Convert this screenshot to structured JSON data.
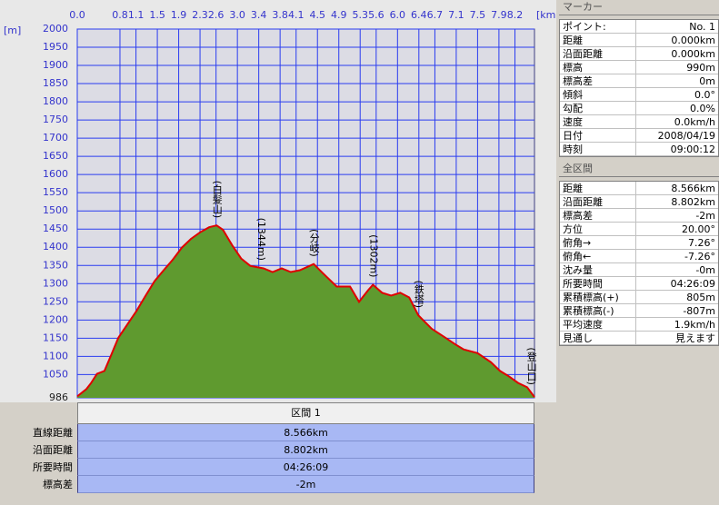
{
  "chart_data": {
    "type": "area",
    "x_label": "[km]",
    "y_label": "[m]",
    "x": [
      0,
      0.17,
      0.26,
      0.37,
      0.51,
      0.63,
      0.77,
      0.94,
      1.11,
      1.28,
      1.45,
      1.62,
      1.79,
      1.96,
      2.13,
      2.3,
      2.47,
      2.61,
      2.73,
      2.9,
      3.07,
      3.24,
      3.49,
      3.66,
      3.83,
      4.0,
      4.17,
      4.43,
      4.6,
      4.86,
      5.11,
      5.28,
      5.45,
      5.54,
      5.71,
      5.88,
      6.05,
      6.22,
      6.39,
      6.64,
      6.9,
      7.07,
      7.24,
      7.5,
      7.75,
      7.92,
      8.09,
      8.26,
      8.43,
      8.566
    ],
    "values": [
      990,
      1010,
      1027,
      1052,
      1060,
      1102,
      1151,
      1188,
      1225,
      1267,
      1307,
      1337,
      1366,
      1399,
      1423,
      1441,
      1455,
      1460,
      1448,
      1406,
      1369,
      1349,
      1342,
      1332,
      1342,
      1332,
      1337,
      1354,
      1329,
      1292,
      1292,
      1250,
      1282,
      1297,
      1275,
      1267,
      1275,
      1262,
      1213,
      1176,
      1151,
      1134,
      1119,
      1109,
      1084,
      1060,
      1045,
      1027,
      1015,
      988
    ],
    "xlim": [
      0,
      8.566
    ],
    "ylim": [
      986,
      2000
    ],
    "xticks": [
      {
        "value": 0,
        "label": "0.0"
      },
      0.8,
      1.1,
      1.5,
      1.9,
      2.3,
      2.6,
      {
        "value": 3,
        "label": "3.0"
      },
      3.4,
      3.8,
      4.1,
      4.5,
      4.9,
      5.3,
      5.6,
      {
        "value": 6,
        "label": "6.0"
      },
      6.4,
      6.7,
      7.1,
      7.5,
      7.9,
      8.2
    ],
    "yticks": [
      986,
      1050,
      1100,
      1150,
      1200,
      1250,
      1300,
      1350,
      1400,
      1450,
      1500,
      1550,
      1600,
      1650,
      1700,
      1750,
      1800,
      1850,
      1900,
      1950,
      2000
    ],
    "line_color": "#e00000",
    "fill_color": "#5f9a2f",
    "grid": true,
    "annotations": [
      {
        "text": "(白髪山)",
        "x": 2.61
      },
      {
        "text": "(1344m)",
        "x": 3.44
      },
      {
        "text": "(分岐)",
        "x": 4.43
      },
      {
        "text": "(1302m)",
        "x": 5.54
      },
      {
        "text": "(鉄塔)",
        "x": 6.39
      },
      {
        "text": "(登山口)",
        "x": 8.5
      }
    ]
  },
  "marker": {
    "title": "マーカー",
    "rows": [
      [
        "ポイント:",
        "No. 1"
      ],
      [
        "距離",
        "0.000km"
      ],
      [
        "沿面距離",
        "0.000km"
      ],
      [
        "標高",
        "990m"
      ],
      [
        "標高差",
        "0m"
      ],
      [
        "傾斜",
        "0.0°"
      ],
      [
        "勾配",
        "0.0%"
      ],
      [
        "速度",
        "0.0km/h"
      ],
      [
        "日付",
        "2008/04/19"
      ],
      [
        "時刻",
        "09:00:12"
      ]
    ]
  },
  "summary": {
    "title": "全区間",
    "rows": [
      [
        "距離",
        "8.566km"
      ],
      [
        "沿面距離",
        "8.802km"
      ],
      [
        "標高差",
        "-2m"
      ],
      [
        "方位",
        "20.00°"
      ],
      [
        "俯角→",
        "7.26°"
      ],
      [
        "俯角←",
        "-7.26°"
      ],
      [
        "沈み量",
        "-0m"
      ],
      [
        "所要時間",
        "04:26:09"
      ],
      [
        "累積標高(+)",
        "805m"
      ],
      [
        "累積標高(-)",
        "-807m"
      ],
      [
        "平均速度",
        "1.9km/h"
      ],
      [
        "見通し",
        "見えます"
      ]
    ]
  },
  "section": {
    "title": "区間 1",
    "rows": [
      [
        "直線距離",
        "8.566km"
      ],
      [
        "沿面距離",
        "8.802km"
      ],
      [
        "所要時間",
        "04:26:09"
      ],
      [
        "標高差",
        "-2m"
      ]
    ]
  }
}
